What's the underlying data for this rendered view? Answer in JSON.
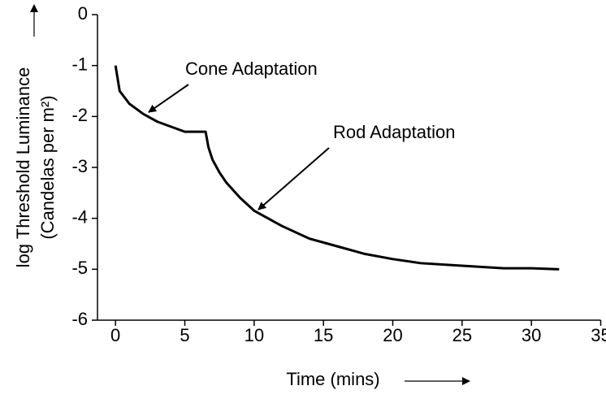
{
  "chart_data": {
    "type": "line",
    "xlabel": "Time (mins)",
    "ylabel": [
      "log Threshold Luminance",
      "(Candelas per m²)"
    ],
    "annotations": [
      "Cone Adaptation",
      "Rod Adaptation"
    ],
    "x": [
      0,
      0.3,
      1,
      2,
      3,
      4,
      5,
      6.5,
      6.7,
      7,
      7.5,
      8,
      9,
      10,
      12,
      14,
      16,
      18,
      20,
      22,
      25,
      28,
      30,
      32
    ],
    "series": [
      {
        "color": "#000000",
        "values": [
          -1.0,
          -1.5,
          -1.75,
          -1.95,
          -2.1,
          -2.2,
          -2.3,
          -2.3,
          -2.6,
          -2.85,
          -3.1,
          -3.3,
          -3.6,
          -3.85,
          -4.15,
          -4.4,
          -4.55,
          -4.7,
          -4.8,
          -4.88,
          -4.93,
          -4.98,
          -4.98,
          -5.0
        ]
      }
    ],
    "xlim": [
      -1.3,
      35
    ],
    "xticks": [
      0,
      5,
      10,
      15,
      20,
      25,
      30,
      35
    ],
    "ylim": [
      -6,
      0
    ],
    "yticks": [
      0,
      -1,
      -2,
      -3,
      -4,
      -5,
      -6
    ]
  }
}
